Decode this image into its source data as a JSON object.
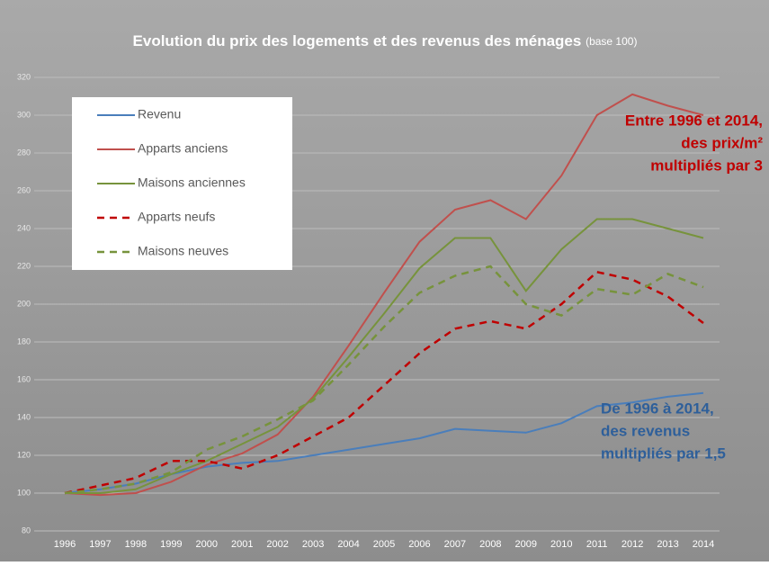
{
  "chart_data": {
    "type": "line",
    "title": "Evolution du prix des logements et des revenus des ménages",
    "subtitle": "(base 100)",
    "categories": [
      "1996",
      "1997",
      "1998",
      "1999",
      "2000",
      "2001",
      "2002",
      "2003",
      "2004",
      "2005",
      "2006",
      "2007",
      "2008",
      "2009",
      "2010",
      "2011",
      "2012",
      "2013",
      "2014"
    ],
    "series": [
      {
        "name": "Revenu",
        "color": "#4a7ebb",
        "line_style": "solid",
        "values": [
          100,
          102,
          105,
          110,
          114,
          116,
          117,
          120,
          123,
          126,
          129,
          134,
          133,
          132,
          137,
          146,
          148,
          151,
          153
        ]
      },
      {
        "name": "Apparts anciens",
        "color": "#c0504d",
        "line_style": "solid",
        "values": [
          100,
          99,
          100,
          106,
          115,
          121,
          131,
          151,
          178,
          206,
          233,
          250,
          255,
          245,
          268,
          300,
          311,
          305,
          300
        ]
      },
      {
        "name": "Maisons anciennes",
        "color": "#77933c",
        "line_style": "solid",
        "values": [
          100,
          100,
          102,
          110,
          117,
          126,
          135,
          150,
          172,
          195,
          219,
          235,
          235,
          207,
          229,
          245,
          245,
          240,
          235
        ]
      },
      {
        "name": "Apparts neufs",
        "color": "#c00000",
        "line_style": "dashed",
        "values": [
          100,
          104,
          108,
          117,
          117,
          113,
          120,
          130,
          140,
          157,
          174,
          187,
          191,
          187,
          200,
          217,
          213,
          204,
          190
        ]
      },
      {
        "name": "Maisons neuves",
        "color": "#77933c",
        "line_style": "dashed",
        "values": [
          100,
          102,
          105,
          111,
          123,
          130,
          139,
          149,
          168,
          188,
          206,
          215,
          220,
          200,
          194,
          208,
          205,
          216,
          209
        ]
      }
    ],
    "ylim": [
      80,
      320
    ],
    "yticks": [
      80,
      100,
      120,
      140,
      160,
      180,
      200,
      220,
      240,
      260,
      280,
      300,
      320
    ],
    "grid": true,
    "legend": "top-left",
    "annotations": [
      {
        "color": "#c00000",
        "lines": [
          "Entre 1996 et 2014,",
          "des prix/m²",
          "multipliés par 3"
        ]
      },
      {
        "color": "#2e5f9a",
        "lines": [
          "De 1996 à 2014,",
          "des revenus",
          "multipliés par 1,5"
        ]
      }
    ]
  }
}
